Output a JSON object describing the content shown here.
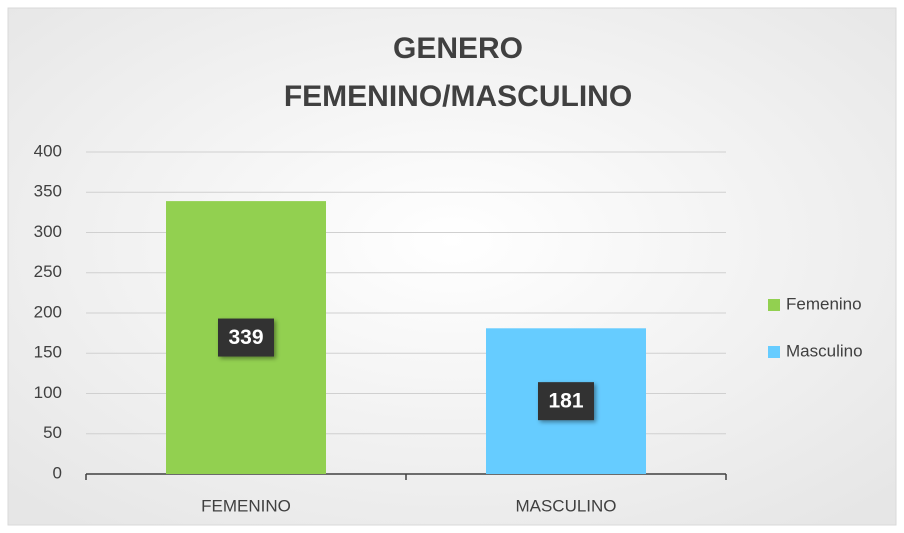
{
  "chart_data": {
    "type": "bar",
    "title": [
      "GENERO",
      "FEMENINO/MASCULINO"
    ],
    "categories": [
      "FEMENINO",
      "MASCULINO"
    ],
    "series": [
      {
        "name": "Femenino",
        "color": "#92d050",
        "values": [
          339,
          null
        ]
      },
      {
        "name": "Masculino",
        "color": "#66ccff",
        "values": [
          null,
          181
        ]
      }
    ],
    "ylim": [
      0,
      400
    ],
    "yticks": [
      0,
      50,
      100,
      150,
      200,
      250,
      300,
      350,
      400
    ],
    "grid": true,
    "legend": "right"
  }
}
